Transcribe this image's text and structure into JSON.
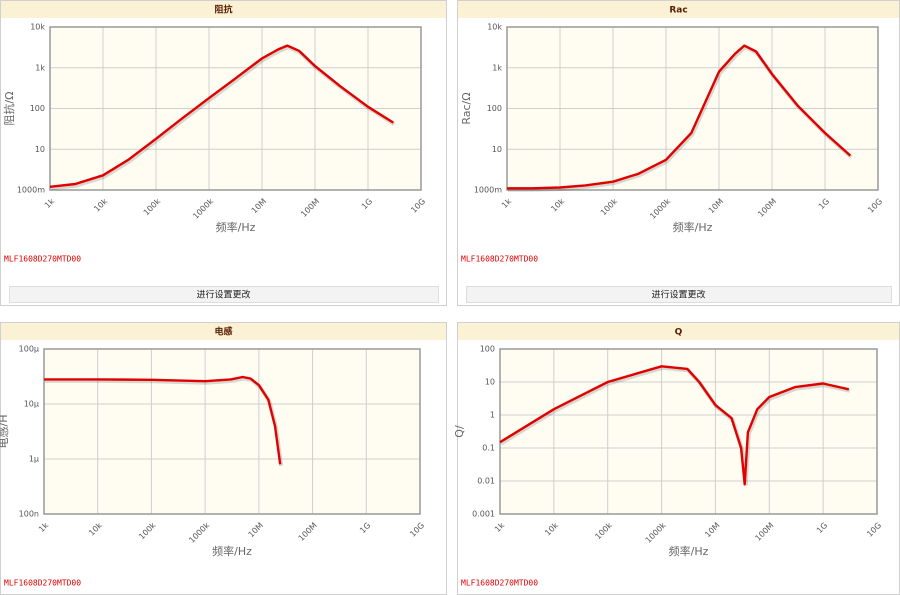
{
  "chart_data": [
    {
      "type": "line",
      "title": "阻抗",
      "ylabel": "阻抗/Ω",
      "xlabel": "频率/Hz",
      "xscale": "log",
      "yscale": "log",
      "grid": true,
      "color": "#e00000",
      "annotation": "MLF1608D270MTD00",
      "button": "进行设置更改",
      "xlim": [
        1000,
        10000000000
      ],
      "ylim": [
        1,
        10000
      ],
      "xticks": [
        {
          "value": 1000,
          "label": "1k"
        },
        {
          "value": 10000,
          "label": "10k"
        },
        {
          "value": 100000,
          "label": "100k"
        },
        {
          "value": 1000000,
          "label": "1000k"
        },
        {
          "value": 10000000,
          "label": "10M"
        },
        {
          "value": 100000000,
          "label": "100M"
        },
        {
          "value": 1000000000,
          "label": "1G"
        },
        {
          "value": 10000000000,
          "label": "10G"
        }
      ],
      "yticks": [
        {
          "value": 1,
          "label": "1000m"
        },
        10,
        100,
        {
          "value": 1000,
          "label": "1k"
        },
        {
          "value": 10000,
          "label": "10k"
        }
      ],
      "x": [
        1000,
        3000,
        10000,
        30000,
        100000,
        300000,
        1000000,
        3000000,
        10000000,
        20000000,
        30000000,
        50000000,
        100000000,
        300000000,
        1000000000,
        3000000000
      ],
      "values": [
        1.2,
        1.4,
        2.3,
        5.5,
        18,
        55,
        180,
        520,
        1700,
        2800,
        3500,
        2600,
        1100,
        350,
        110,
        45
      ]
    },
    {
      "type": "line",
      "title": "Rac",
      "ylabel": "Rac/Ω",
      "xlabel": "频率/Hz",
      "xscale": "log",
      "yscale": "log",
      "grid": true,
      "color": "#e00000",
      "annotation": "MLF1608D270MTD00",
      "button": "进行设置更改",
      "xlim": [
        1000,
        10000000000
      ],
      "ylim": [
        1,
        10000
      ],
      "xticks": [
        {
          "value": 1000,
          "label": "1k"
        },
        {
          "value": 10000,
          "label": "10k"
        },
        {
          "value": 100000,
          "label": "100k"
        },
        {
          "value": 1000000,
          "label": "1000k"
        },
        {
          "value": 10000000,
          "label": "10M"
        },
        {
          "value": 100000000,
          "label": "100M"
        },
        {
          "value": 1000000000,
          "label": "1G"
        },
        {
          "value": 10000000000,
          "label": "10G"
        }
      ],
      "yticks": [
        {
          "value": 1,
          "label": "1000m"
        },
        10,
        100,
        {
          "value": 1000,
          "label": "1k"
        },
        {
          "value": 10000,
          "label": "10k"
        }
      ],
      "x": [
        1000,
        3000,
        10000,
        30000,
        100000,
        300000,
        1000000,
        3000000,
        10000000,
        20000000,
        30000000,
        50000000,
        100000000,
        300000000,
        1000000000,
        3000000000
      ],
      "values": [
        1.1,
        1.1,
        1.15,
        1.3,
        1.6,
        2.5,
        5.5,
        25,
        800,
        2200,
        3500,
        2500,
        700,
        120,
        25,
        7
      ]
    },
    {
      "type": "line",
      "title": "电感",
      "ylabel": "电感/H",
      "xlabel": "频率/Hz",
      "xscale": "log",
      "yscale": "log",
      "grid": true,
      "color": "#e00000",
      "annotation": "MLF1608D270MTD00",
      "xlim": [
        1000,
        10000000000
      ],
      "ylim": [
        1e-07,
        0.0001
      ],
      "xticks": [
        {
          "value": 1000,
          "label": "1k"
        },
        {
          "value": 10000,
          "label": "10k"
        },
        {
          "value": 100000,
          "label": "100k"
        },
        {
          "value": 1000000,
          "label": "1000k"
        },
        {
          "value": 10000000,
          "label": "10M"
        },
        {
          "value": 100000000,
          "label": "100M"
        },
        {
          "value": 1000000000,
          "label": "1G"
        },
        {
          "value": 10000000000,
          "label": "10G"
        }
      ],
      "yticks": [
        {
          "value": 1e-07,
          "label": "100n"
        },
        {
          "value": 1e-06,
          "label": "1μ"
        },
        {
          "value": 1e-05,
          "label": "10μ"
        },
        {
          "value": 0.0001,
          "label": "100μ"
        }
      ],
      "x": [
        1000,
        10000,
        100000,
        1000000,
        3000000,
        5000000,
        7000000,
        10000000,
        15000000,
        20000000,
        25000000
      ],
      "values": [
        2.8e-05,
        2.8e-05,
        2.75e-05,
        2.6e-05,
        2.8e-05,
        3.1e-05,
        2.9e-05,
        2.2e-05,
        1.2e-05,
        4e-06,
        8e-07
      ]
    },
    {
      "type": "line",
      "title": "Q",
      "ylabel": "Q/",
      "xlabel": "频率/Hz",
      "xscale": "log",
      "yscale": "log",
      "grid": true,
      "color": "#e00000",
      "annotation": "MLF1608D270MTD00",
      "xlim": [
        1000,
        10000000000
      ],
      "ylim": [
        0.001,
        100
      ],
      "xticks": [
        {
          "value": 1000,
          "label": "1k"
        },
        {
          "value": 10000,
          "label": "10k"
        },
        {
          "value": 100000,
          "label": "100k"
        },
        {
          "value": 1000000,
          "label": "1000k"
        },
        {
          "value": 10000000,
          "label": "10M"
        },
        {
          "value": 100000000,
          "label": "100M"
        },
        {
          "value": 1000000000,
          "label": "1G"
        },
        {
          "value": 10000000000,
          "label": "10G"
        }
      ],
      "yticks": [
        0.001,
        0.01,
        0.1,
        1,
        10,
        100
      ],
      "x": [
        1000,
        10000,
        100000,
        1000000,
        3000000,
        5000000,
        10000000,
        20000000,
        30000000,
        35000000,
        40000000,
        60000000,
        100000000,
        300000000,
        1000000000,
        3000000000
      ],
      "values": [
        0.15,
        1.5,
        10,
        30,
        25,
        10,
        2,
        0.8,
        0.1,
        0.008,
        0.3,
        1.5,
        3.5,
        7,
        9,
        6
      ]
    }
  ]
}
